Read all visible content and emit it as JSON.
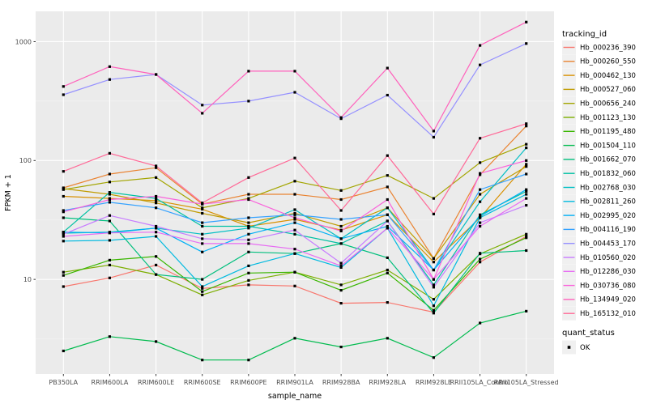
{
  "chart_data": {
    "type": "line",
    "title": "",
    "xlabel": "sample_name",
    "ylabel": "FPKM + 1",
    "y_scale": "log10",
    "ylim": [
      1.6,
      1800
    ],
    "y_ticks": [
      10,
      100,
      1000
    ],
    "y_minor_ticks": [
      3.162,
      31.62,
      316.2
    ],
    "grid": true,
    "panel_bg": "#EBEBEB",
    "grid_major_color": "#FFFFFF",
    "grid_minor_color": "#F4F4F4",
    "point_color": "#000000",
    "tick_text_color": "#4D4D4D",
    "legend_position": "right",
    "legend_title": "tracking_id",
    "legend_key_bg": "#F0F0F0",
    "quant_legend_title": "quant_status",
    "quant_legend_items": [
      {
        "label": "OK",
        "marker": "black-point"
      }
    ],
    "categories": [
      "PB350LA",
      "RRIM600LA",
      "RRIM600LE",
      "RRIM600SE",
      "RRIM600PE",
      "RRIM901LA",
      "RRIM928BA",
      "RRIM928LA",
      "RRIM928LE",
      "RRII105LA_Control",
      "RRII105LA_Stressed"
    ],
    "series": [
      {
        "name": "Hb_000236_390",
        "color": "#F8766D",
        "values": [
          8.7,
          10.3,
          13.2,
          8.4,
          9.0,
          8.8,
          6.3,
          6.4,
          5.3,
          14,
          23
        ]
      },
      {
        "name": "Hb_000260_550",
        "color": "#EA8331",
        "values": [
          59,
          77,
          87,
          43,
          52,
          52,
          47,
          60,
          15,
          76,
          195
        ]
      },
      {
        "name": "Hb_000462_130",
        "color": "#D89000",
        "values": [
          50,
          48,
          46,
          39,
          28,
          32,
          26,
          35,
          14,
          33,
          93
        ]
      },
      {
        "name": "Hb_000527_060",
        "color": "#C09B00",
        "values": [
          58,
          52,
          44,
          36,
          30,
          36,
          28,
          40,
          15,
          52,
          89
        ]
      },
      {
        "name": "Hb_000656_240",
        "color": "#A3A500",
        "values": [
          57,
          66,
          72,
          40,
          48,
          67,
          56,
          75,
          48,
          96,
          137
        ]
      },
      {
        "name": "Hb_001123_130",
        "color": "#7CAE00",
        "values": [
          11.5,
          13.2,
          11,
          7.4,
          9.8,
          11.5,
          9,
          12,
          6.8,
          16.4,
          24
        ]
      },
      {
        "name": "Hb_001195_480",
        "color": "#39B600",
        "values": [
          10.8,
          14.5,
          15.6,
          7.9,
          11.3,
          11.5,
          8.1,
          11.3,
          5.5,
          14.8,
          22.4
        ]
      },
      {
        "name": "Hb_001504_110",
        "color": "#00BB4E",
        "values": [
          2.5,
          3.3,
          3.0,
          2.1,
          2.1,
          3.2,
          2.7,
          3.2,
          2.2,
          4.3,
          5.4
        ]
      },
      {
        "name": "Hb_001662_070",
        "color": "#00BF7D",
        "values": [
          33,
          31,
          11,
          10,
          17,
          16.5,
          20,
          15.2,
          5.2,
          16.6,
          17.5
        ]
      },
      {
        "name": "Hb_001832_060",
        "color": "#00C1A3",
        "values": [
          25,
          54,
          48,
          28,
          28,
          24,
          20,
          31,
          9,
          35,
          55
        ]
      },
      {
        "name": "Hb_002768_030",
        "color": "#00BFC4",
        "values": [
          24.5,
          25,
          27,
          24,
          27,
          38.6,
          22,
          40,
          12,
          45,
          128
        ]
      },
      {
        "name": "Hb_002811_260",
        "color": "#00BAE0",
        "values": [
          21,
          21.3,
          23,
          8.7,
          13,
          16.5,
          12.6,
          27,
          6,
          33,
          52
        ]
      },
      {
        "name": "Hb_002995_020",
        "color": "#00B0F6",
        "values": [
          25,
          24.6,
          27,
          17,
          24,
          30,
          22,
          28,
          12,
          34,
          57
        ]
      },
      {
        "name": "Hb_004116_190",
        "color": "#35A2FF",
        "values": [
          38,
          44.5,
          40,
          30,
          33,
          35,
          32,
          35,
          12,
          57,
          77
        ]
      },
      {
        "name": "Hb_004453_170",
        "color": "#9590FF",
        "values": [
          358,
          481,
          530,
          293,
          316,
          375,
          225,
          355,
          157,
          637,
          965
        ]
      },
      {
        "name": "Hb_010560_020",
        "color": "#C77CFF",
        "values": [
          24,
          34.5,
          28,
          22,
          21.5,
          26,
          13.7,
          31,
          8.6,
          30,
          42
        ]
      },
      {
        "name": "Hb_012286_030",
        "color": "#E76BF3",
        "values": [
          23,
          24.6,
          25,
          20,
          20,
          18,
          13,
          27,
          10,
          28,
          48
        ]
      },
      {
        "name": "Hb_030736_080",
        "color": "#FA62DB",
        "values": [
          37,
          47,
          50,
          43,
          47,
          33,
          25.5,
          47,
          10,
          78,
          100
        ]
      },
      {
        "name": "Hb_134949_020",
        "color": "#FF62BC",
        "values": [
          420,
          617,
          530,
          250,
          565,
          565,
          230,
          600,
          177,
          930,
          1460
        ]
      },
      {
        "name": "Hb_165132_010",
        "color": "#FF6A98",
        "values": [
          81,
          115,
          90,
          44,
          72,
          105,
          38,
          110,
          35.5,
          154,
          204
        ]
      }
    ]
  }
}
